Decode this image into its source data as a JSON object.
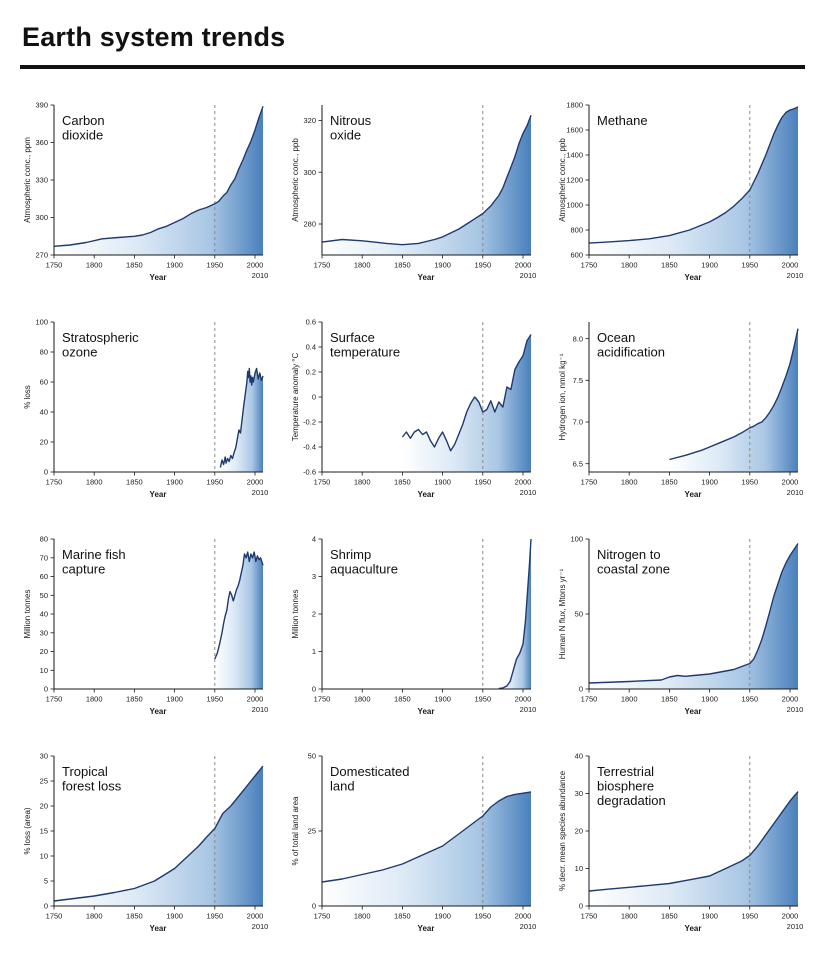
{
  "page": {
    "title": "Earth system trends"
  },
  "colors": {
    "line": "#1e3a6e",
    "fill_start": "#ffffff",
    "fill_mid1": "#dce9f5",
    "fill_mid2": "#a8c6e4",
    "fill_end": "#4a80bc",
    "dashed": "#8a8a8a",
    "axis": "#1a1a1a"
  },
  "chart_data": [
    {
      "id": "carbon-dioxide",
      "type": "area",
      "title_lines": [
        "Carbon",
        "dioxide"
      ],
      "ylabel": "Atmospheric conc., ppm",
      "xlabel": "Year",
      "xlim": [
        1750,
        2010
      ],
      "ylim": [
        270,
        390
      ],
      "xticks": [
        1750,
        1800,
        1850,
        1900,
        1950,
        2000
      ],
      "x_end_label": "2010",
      "yticks": [
        270,
        300,
        330,
        360,
        390
      ],
      "ytick_labels": [
        "270",
        "300",
        "330",
        "360",
        "390"
      ],
      "dashed_x": 1950,
      "x": [
        1750,
        1770,
        1790,
        1810,
        1830,
        1850,
        1860,
        1870,
        1880,
        1890,
        1900,
        1910,
        1920,
        1930,
        1940,
        1950,
        1955,
        1960,
        1965,
        1970,
        1975,
        1980,
        1985,
        1990,
        1995,
        2000,
        2005,
        2010
      ],
      "y": [
        277,
        278,
        280,
        283,
        284,
        285,
        286,
        288,
        291,
        293,
        296,
        299,
        303,
        306,
        308,
        311,
        313,
        317,
        320,
        326,
        331,
        339,
        346,
        354,
        361,
        370,
        380,
        389
      ]
    },
    {
      "id": "nitrous-oxide",
      "type": "area",
      "title_lines": [
        "Nitrous",
        "oxide"
      ],
      "ylabel": "Atmospheric conc., ppb",
      "xlabel": "Year",
      "xlim": [
        1750,
        2010
      ],
      "ylim": [
        268,
        326
      ],
      "xticks": [
        1750,
        1800,
        1850,
        1900,
        1950,
        2000
      ],
      "x_end_label": "2010",
      "yticks": [
        280,
        300,
        320
      ],
      "ytick_labels": [
        "280",
        "300",
        "320"
      ],
      "dashed_x": 1950,
      "x": [
        1750,
        1775,
        1800,
        1815,
        1830,
        1850,
        1870,
        1890,
        1900,
        1910,
        1920,
        1930,
        1940,
        1950,
        1960,
        1970,
        1975,
        1980,
        1985,
        1990,
        1995,
        2000,
        2005,
        2010
      ],
      "y": [
        273,
        274,
        273.5,
        273,
        272.5,
        272,
        272.5,
        274,
        275,
        276.5,
        278,
        280,
        282,
        284,
        287,
        291,
        294,
        298,
        302,
        306,
        311,
        315,
        318,
        322
      ]
    },
    {
      "id": "methane",
      "type": "area",
      "title_lines": [
        "Methane"
      ],
      "ylabel": "Atmospheric conc., ppb",
      "xlabel": "Year",
      "xlim": [
        1750,
        2010
      ],
      "ylim": [
        600,
        1800
      ],
      "xticks": [
        1750,
        1800,
        1850,
        1900,
        1950,
        2000
      ],
      "x_end_label": "2010",
      "yticks": [
        600,
        800,
        1000,
        1200,
        1400,
        1600,
        1800
      ],
      "ytick_labels": [
        "600",
        "800",
        "1000",
        "1200",
        "1400",
        "1600",
        "1800"
      ],
      "dashed_x": 1950,
      "x": [
        1750,
        1775,
        1800,
        1825,
        1850,
        1875,
        1900,
        1910,
        1920,
        1930,
        1940,
        1950,
        1960,
        1970,
        1980,
        1985,
        1990,
        1995,
        2000,
        2005,
        2010
      ],
      "y": [
        695,
        705,
        715,
        730,
        755,
        800,
        865,
        900,
        940,
        990,
        1050,
        1120,
        1250,
        1400,
        1570,
        1640,
        1700,
        1740,
        1760,
        1770,
        1785
      ]
    },
    {
      "id": "stratospheric-ozone",
      "type": "area",
      "title_lines": [
        "Stratospheric",
        "ozone"
      ],
      "ylabel": "% loss",
      "xlabel": "Year",
      "xlim": [
        1750,
        2010
      ],
      "ylim": [
        0,
        100
      ],
      "xticks": [
        1750,
        1800,
        1850,
        1900,
        1950,
        2000
      ],
      "x_end_label": "2010",
      "yticks": [
        0,
        20,
        40,
        60,
        80,
        100
      ],
      "ytick_labels": [
        "0",
        "20",
        "40",
        "60",
        "80",
        "100"
      ],
      "dashed_x": 1950,
      "x": [
        1957,
        1959,
        1961,
        1963,
        1964,
        1966,
        1968,
        1970,
        1972,
        1974,
        1976,
        1978,
        1980,
        1982,
        1984,
        1986,
        1988,
        1990,
        1991,
        1992,
        1993,
        1994,
        1995,
        1996,
        1997,
        1998,
        2000,
        2002,
        2004,
        2006,
        2008,
        2010
      ],
      "y": [
        3,
        8,
        5,
        10,
        6,
        9,
        7,
        11,
        9,
        13,
        16,
        22,
        28,
        26,
        35,
        44,
        52,
        60,
        67,
        63,
        69,
        60,
        64,
        58,
        63,
        60,
        66,
        69,
        62,
        66,
        61,
        64
      ]
    },
    {
      "id": "surface-temperature",
      "type": "area",
      "title_lines": [
        "Surface",
        "temperature"
      ],
      "ylabel": "Temperature anomaly °C",
      "xlabel": "Year",
      "xlim": [
        1750,
        2010
      ],
      "ylim": [
        -0.6,
        0.6
      ],
      "xticks": [
        1750,
        1800,
        1850,
        1900,
        1950,
        2000
      ],
      "x_end_label": "2010",
      "yticks": [
        -0.6,
        -0.4,
        -0.2,
        0,
        0.2,
        0.4,
        0.6
      ],
      "ytick_labels": [
        "-0.6",
        "-0.4",
        "-0.2",
        "0",
        "0.2",
        "0.4",
        "0.6"
      ],
      "dashed_x": 1950,
      "x": [
        1850,
        1855,
        1860,
        1865,
        1870,
        1875,
        1880,
        1885,
        1890,
        1895,
        1900,
        1905,
        1910,
        1915,
        1920,
        1925,
        1930,
        1935,
        1940,
        1945,
        1950,
        1955,
        1960,
        1965,
        1970,
        1975,
        1980,
        1985,
        1990,
        1995,
        2000,
        2005,
        2010
      ],
      "y": [
        -0.32,
        -0.28,
        -0.33,
        -0.28,
        -0.26,
        -0.3,
        -0.28,
        -0.35,
        -0.4,
        -0.33,
        -0.28,
        -0.35,
        -0.43,
        -0.38,
        -0.3,
        -0.22,
        -0.12,
        -0.05,
        0.0,
        -0.04,
        -0.12,
        -0.1,
        -0.03,
        -0.12,
        -0.04,
        -0.08,
        0.08,
        0.06,
        0.22,
        0.28,
        0.33,
        0.45,
        0.5
      ]
    },
    {
      "id": "ocean-acidification",
      "type": "area",
      "title_lines": [
        "Ocean",
        "acidification"
      ],
      "ylabel": "Hydrogen ion, nmol kg⁻¹",
      "xlabel": "Year",
      "xlim": [
        1750,
        2010
      ],
      "ylim": [
        6.4,
        8.2
      ],
      "xticks": [
        1750,
        1800,
        1850,
        1900,
        1950,
        2000
      ],
      "x_end_label": "2010",
      "yticks": [
        6.5,
        7.0,
        7.5,
        8.0
      ],
      "ytick_labels": [
        "6.5",
        "7.0",
        "7.5",
        "8.0"
      ],
      "dashed_x": 1950,
      "x": [
        1850,
        1870,
        1890,
        1900,
        1910,
        1920,
        1930,
        1940,
        1950,
        1955,
        1960,
        1965,
        1970,
        1975,
        1980,
        1985,
        1990,
        1995,
        2000,
        2005,
        2010
      ],
      "y": [
        6.55,
        6.6,
        6.66,
        6.7,
        6.74,
        6.78,
        6.82,
        6.87,
        6.93,
        6.95,
        6.98,
        7.0,
        7.05,
        7.12,
        7.2,
        7.3,
        7.42,
        7.55,
        7.7,
        7.9,
        8.12
      ]
    },
    {
      "id": "marine-fish-capture",
      "type": "area",
      "title_lines": [
        "Marine fish",
        "capture"
      ],
      "ylabel": "Million tonnes",
      "xlabel": "Year",
      "xlim": [
        1750,
        2010
      ],
      "ylim": [
        0,
        80
      ],
      "xticks": [
        1750,
        1800,
        1850,
        1900,
        1950,
        2000
      ],
      "x_end_label": "2010",
      "yticks": [
        0,
        10,
        20,
        30,
        40,
        50,
        60,
        70,
        80
      ],
      "ytick_labels": [
        "0",
        "10",
        "20",
        "30",
        "40",
        "50",
        "60",
        "70",
        "80"
      ],
      "dashed_x": 1950,
      "x": [
        1950,
        1953,
        1956,
        1959,
        1961,
        1963,
        1965,
        1967,
        1969,
        1971,
        1973,
        1975,
        1977,
        1979,
        1981,
        1983,
        1985,
        1987,
        1989,
        1991,
        1993,
        1995,
        1997,
        1999,
        2001,
        2003,
        2005,
        2007,
        2010
      ],
      "y": [
        16,
        19,
        24,
        30,
        35,
        39,
        42,
        48,
        52,
        50,
        47,
        50,
        53,
        55,
        58,
        62,
        66,
        72,
        70,
        73,
        68,
        72,
        70,
        73,
        68,
        71,
        69,
        70,
        66
      ]
    },
    {
      "id": "shrimp-aquaculture",
      "type": "area",
      "title_lines": [
        "Shrimp",
        "aquaculture"
      ],
      "ylabel": "Million tonnes",
      "xlabel": "Year",
      "xlim": [
        1750,
        2010
      ],
      "ylim": [
        0,
        4
      ],
      "xticks": [
        1750,
        1800,
        1850,
        1900,
        1950,
        2000
      ],
      "x_end_label": "2010",
      "yticks": [
        0,
        1,
        2,
        3,
        4
      ],
      "ytick_labels": [
        "0",
        "1",
        "2",
        "3",
        "4"
      ],
      "dashed_x": 1950,
      "x": [
        1970,
        1975,
        1980,
        1984,
        1988,
        1992,
        1996,
        2000,
        2003,
        2006,
        2008,
        2010
      ],
      "y": [
        0.01,
        0.03,
        0.08,
        0.2,
        0.5,
        0.8,
        0.95,
        1.2,
        1.8,
        2.7,
        3.3,
        4.0
      ]
    },
    {
      "id": "nitrogen-to-coastal-zone",
      "type": "area",
      "title_lines": [
        "Nitrogen to",
        "coastal zone"
      ],
      "ylabel": "Human N flux, Mtons yr⁻¹",
      "xlabel": "Year",
      "xlim": [
        1750,
        2010
      ],
      "ylim": [
        0,
        100
      ],
      "xticks": [
        1750,
        1800,
        1850,
        1900,
        1950,
        2000
      ],
      "x_end_label": "2010",
      "yticks": [
        0,
        50,
        100
      ],
      "ytick_labels": [
        "0",
        "50",
        "100"
      ],
      "dashed_x": 1950,
      "x": [
        1750,
        1800,
        1840,
        1850,
        1860,
        1870,
        1880,
        1900,
        1910,
        1920,
        1930,
        1940,
        1950,
        1955,
        1960,
        1965,
        1970,
        1975,
        1980,
        1985,
        1990,
        1995,
        2000,
        2005,
        2010
      ],
      "y": [
        4,
        5,
        6,
        8,
        9,
        8.5,
        9,
        10,
        11,
        12,
        13,
        15,
        17,
        20,
        26,
        33,
        42,
        52,
        62,
        70,
        78,
        84,
        89,
        93,
        97
      ]
    },
    {
      "id": "tropical-forest-loss",
      "type": "area",
      "title_lines": [
        "Tropical",
        "forest loss"
      ],
      "ylabel": "% loss (area)",
      "xlabel": "Year",
      "xlim": [
        1750,
        2010
      ],
      "ylim": [
        0,
        30
      ],
      "xticks": [
        1750,
        1800,
        1850,
        1900,
        1950,
        2000
      ],
      "x_end_label": "2010",
      "yticks": [
        0,
        5,
        10,
        15,
        20,
        25,
        30
      ],
      "ytick_labels": [
        "0",
        "5",
        "10",
        "15",
        "20",
        "25",
        "30"
      ],
      "dashed_x": 1950,
      "x": [
        1750,
        1775,
        1800,
        1825,
        1850,
        1875,
        1900,
        1910,
        1920,
        1930,
        1940,
        1950,
        1955,
        1960,
        1970,
        1980,
        1990,
        2000,
        2010
      ],
      "y": [
        1,
        1.5,
        2,
        2.7,
        3.5,
        5,
        7.5,
        9,
        10.5,
        12,
        13.8,
        15.5,
        17,
        18.5,
        20,
        22,
        24,
        26,
        28
      ]
    },
    {
      "id": "domesticated-land",
      "type": "area",
      "title_lines": [
        "Domesticated",
        "land"
      ],
      "ylabel": "% of total land area",
      "xlabel": "Year",
      "xlim": [
        1750,
        2010
      ],
      "ylim": [
        0,
        50
      ],
      "xticks": [
        1750,
        1800,
        1850,
        1900,
        1950,
        2000
      ],
      "x_end_label": "2010",
      "yticks": [
        0,
        25,
        50
      ],
      "ytick_labels": [
        "0",
        "25",
        "50"
      ],
      "dashed_x": 1950,
      "x": [
        1750,
        1775,
        1800,
        1825,
        1850,
        1875,
        1900,
        1910,
        1920,
        1930,
        1940,
        1950,
        1960,
        1970,
        1980,
        1990,
        2000,
        2010
      ],
      "y": [
        8,
        9,
        10.5,
        12,
        14,
        17,
        20,
        22,
        24,
        26,
        28,
        30,
        33,
        35,
        36.5,
        37.2,
        37.6,
        38
      ]
    },
    {
      "id": "terrestrial-biosphere-degradation",
      "type": "area",
      "title_lines": [
        "Terrestrial",
        "biosphere",
        "degradation"
      ],
      "ylabel": "% decr. mean species abundance",
      "xlabel": "Year",
      "xlim": [
        1750,
        2010
      ],
      "ylim": [
        0,
        40
      ],
      "xticks": [
        1750,
        1800,
        1850,
        1900,
        1950,
        2000
      ],
      "x_end_label": "2010",
      "yticks": [
        0,
        10,
        20,
        30,
        40
      ],
      "ytick_labels": [
        "0",
        "10",
        "20",
        "30",
        "40"
      ],
      "dashed_x": 1950,
      "x": [
        1750,
        1775,
        1800,
        1825,
        1850,
        1875,
        1900,
        1910,
        1920,
        1930,
        1940,
        1950,
        1960,
        1970,
        1980,
        1990,
        2000,
        2010
      ],
      "y": [
        4,
        4.5,
        5,
        5.5,
        6,
        7,
        8,
        9,
        10,
        11,
        12,
        13.5,
        16,
        19,
        22,
        25,
        28,
        30.5
      ]
    }
  ]
}
